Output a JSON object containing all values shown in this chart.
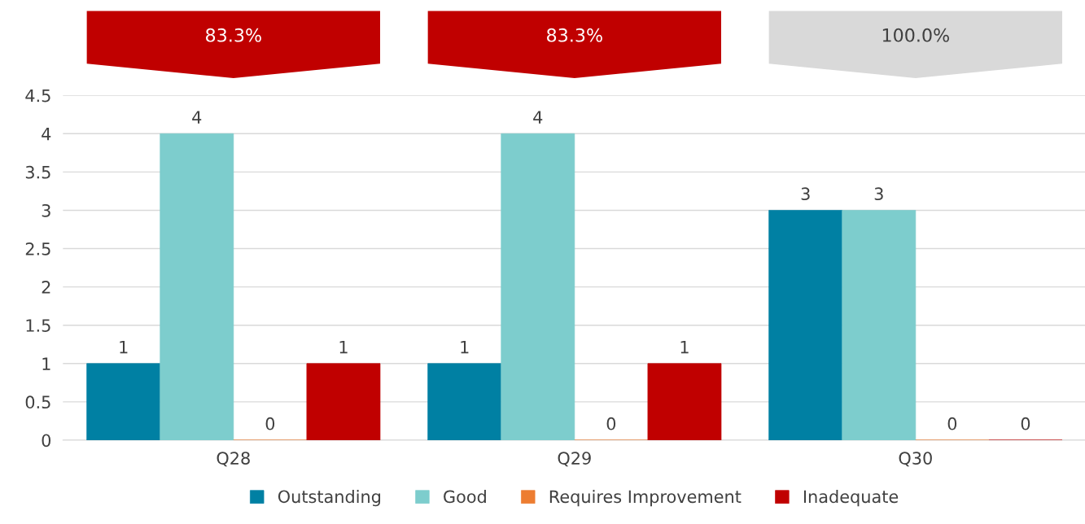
{
  "chart_data": {
    "type": "bar",
    "categories": [
      "Q28",
      "Q29",
      "Q30"
    ],
    "series": [
      {
        "name": "Outstanding",
        "color": "#0080a3",
        "values": [
          1,
          1,
          3
        ]
      },
      {
        "name": "Good",
        "color": "#7dcdcd",
        "values": [
          4,
          4,
          3
        ]
      },
      {
        "name": "Requires Improvement",
        "color": "#ed7d31",
        "values": [
          0,
          0,
          0
        ]
      },
      {
        "name": "Inadequate",
        "color": "#c00000",
        "values": [
          1,
          1,
          0
        ]
      }
    ],
    "annotations": [
      "83.3%",
      "83.3%",
      "100.0%"
    ],
    "ylim": [
      0,
      4.5
    ],
    "yticks": [
      0,
      0.5,
      1,
      1.5,
      2,
      2.5,
      3,
      3.5,
      4,
      4.5
    ],
    "grid": "y",
    "legend": "bottom",
    "data_labels": true
  }
}
